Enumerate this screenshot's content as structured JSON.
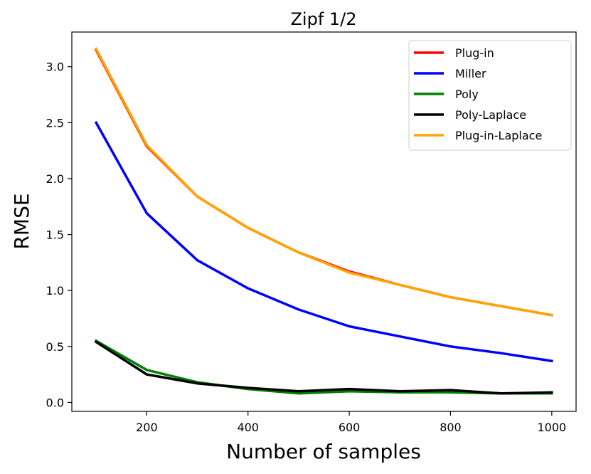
{
  "chart_data": {
    "type": "line",
    "title": "Zipf 1/2",
    "xlabel": "Number of samples",
    "ylabel": "RMSE",
    "x": [
      100,
      200,
      300,
      400,
      500,
      600,
      700,
      800,
      900,
      1000
    ],
    "xlim": [
      52,
      1048
    ],
    "ylim": [
      -0.08,
      3.31
    ],
    "xticks": [
      200,
      400,
      600,
      800,
      1000
    ],
    "yticks": [
      0.0,
      0.5,
      1.0,
      1.5,
      2.0,
      2.5,
      3.0
    ],
    "ytick_labels": [
      "0.0",
      "0.5",
      "1.0",
      "1.5",
      "2.0",
      "2.5",
      "3.0"
    ],
    "grid": false,
    "legend_position": "top-right",
    "series": [
      {
        "name": "Plug-in",
        "color": "#ff0000",
        "values": [
          3.15,
          2.29,
          1.84,
          1.56,
          1.34,
          1.17,
          1.05,
          0.94,
          0.86,
          0.78
        ]
      },
      {
        "name": "Miller",
        "color": "#0000ff",
        "values": [
          2.5,
          1.69,
          1.27,
          1.02,
          0.83,
          0.68,
          0.59,
          0.5,
          0.44,
          0.37
        ]
      },
      {
        "name": "Poly",
        "color": "#008000",
        "values": [
          0.55,
          0.29,
          0.18,
          0.12,
          0.08,
          0.1,
          0.09,
          0.09,
          0.08,
          0.08
        ]
      },
      {
        "name": "Poly-Laplace",
        "color": "#000000",
        "values": [
          0.54,
          0.25,
          0.17,
          0.13,
          0.1,
          0.12,
          0.1,
          0.11,
          0.08,
          0.09
        ]
      },
      {
        "name": "Plug-in-Laplace",
        "color": "#ffa500",
        "values": [
          3.16,
          2.3,
          1.84,
          1.56,
          1.34,
          1.16,
          1.05,
          0.94,
          0.86,
          0.78
        ]
      }
    ]
  }
}
